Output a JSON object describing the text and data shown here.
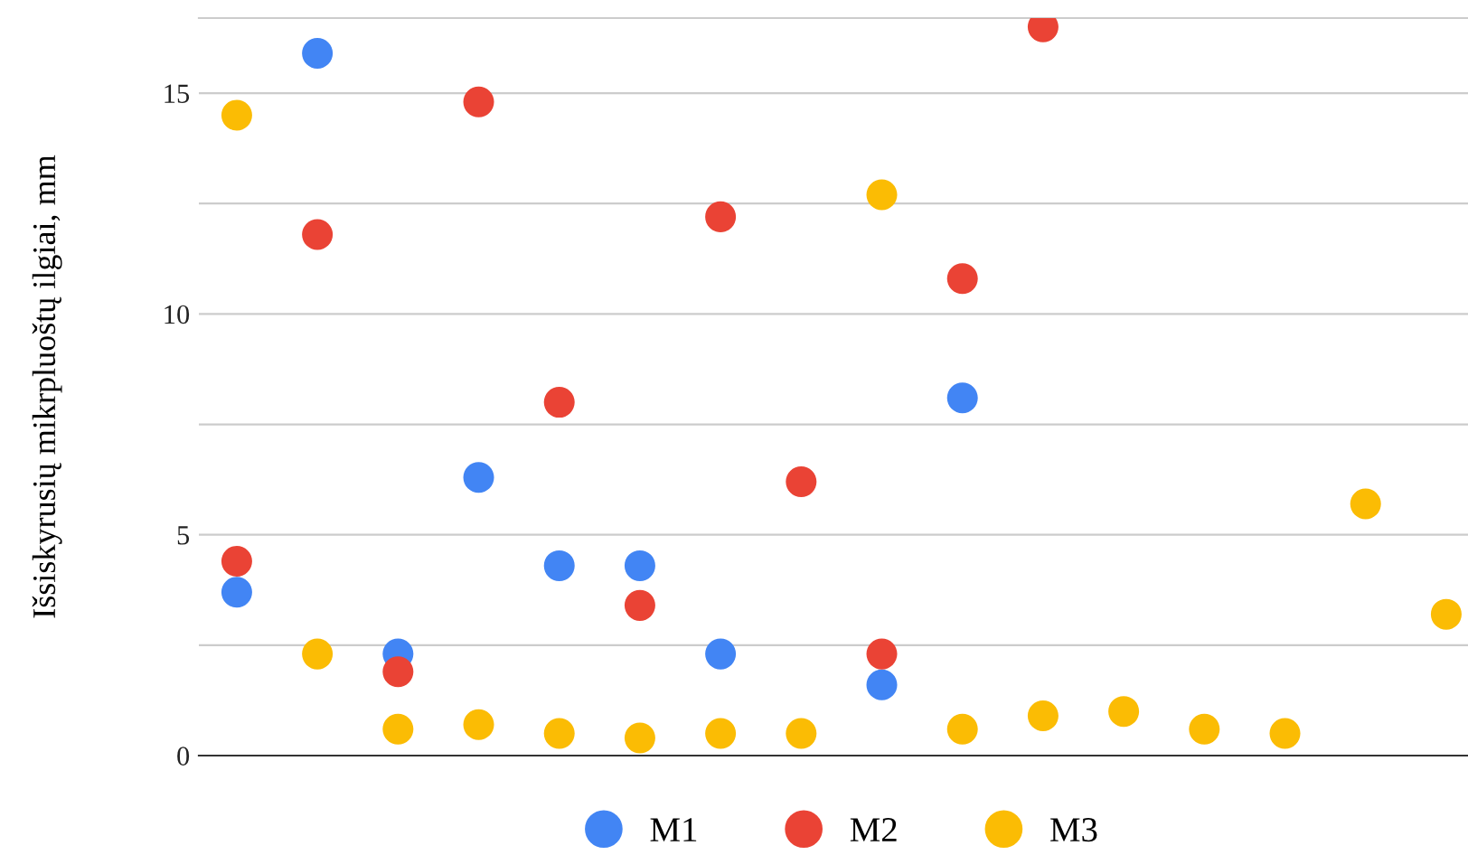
{
  "chart_data": {
    "type": "scatter",
    "ylabel": "Išsiskyrusių mikrpluoštų ilgiai, mm",
    "categories": [
      null,
      null,
      null,
      null,
      null,
      null,
      null,
      null,
      null,
      null,
      null,
      null,
      null,
      null,
      null,
      null
    ],
    "series": [
      {
        "name": "M1",
        "color": "#4285f4",
        "values": [
          3.7,
          15.9,
          2.3,
          6.3,
          4.3,
          4.3,
          2.3,
          null,
          1.6,
          8.1,
          null,
          null,
          null,
          null,
          null,
          null
        ]
      },
      {
        "name": "M2",
        "color": "#ea4335",
        "values": [
          4.4,
          11.8,
          1.9,
          14.8,
          8.0,
          3.4,
          12.2,
          6.2,
          2.3,
          10.8,
          16.5,
          null,
          null,
          null,
          null,
          null
        ]
      },
      {
        "name": "M3",
        "color": "#fbbc04",
        "values": [
          14.5,
          2.3,
          0.6,
          0.7,
          0.5,
          0.4,
          0.5,
          0.5,
          12.7,
          0.6,
          0.9,
          1.0,
          0.6,
          0.5,
          5.7,
          3.2
        ]
      }
    ],
    "ylim": [
      0,
      16.7
    ],
    "yticks": [
      0,
      {
        "value": 2.5,
        "label": null
      },
      5,
      {
        "value": 7.5,
        "label": null
      },
      10,
      {
        "value": 12.5,
        "label": null
      },
      15
    ],
    "grid": "y",
    "legend": "bottom",
    "marker": "circle"
  }
}
